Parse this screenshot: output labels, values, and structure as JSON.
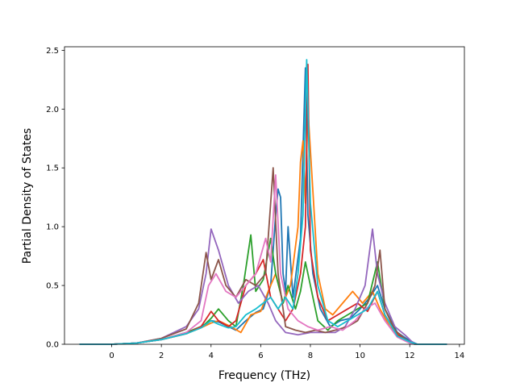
{
  "chart_data": {
    "type": "line",
    "xlabel": "Frequency (THz)",
    "ylabel": "Partial Density of States",
    "xlim": [
      -1.9,
      14.2
    ],
    "ylim": [
      0.0,
      2.53
    ],
    "xticks": [
      0,
      2,
      4,
      6,
      8,
      10,
      12,
      14
    ],
    "yticks": [
      0.0,
      0.5,
      1.0,
      1.5,
      2.0,
      2.5
    ],
    "xtick_labels": [
      "0",
      "2",
      "4",
      "6",
      "8",
      "10",
      "12",
      "14"
    ],
    "ytick_labels": [
      "0.0",
      "0.5",
      "1.0",
      "1.5",
      "2.0",
      "2.5"
    ],
    "grid": false,
    "series": [
      {
        "color": "#1f77b4",
        "points": [
          [
            -1.3,
            0
          ],
          [
            0,
            0
          ],
          [
            1,
            0.01
          ],
          [
            2,
            0.04
          ],
          [
            3,
            0.09
          ],
          [
            3.6,
            0.15
          ],
          [
            4,
            0.2
          ],
          [
            4.3,
            0.19
          ],
          [
            4.7,
            0.15
          ],
          [
            5,
            0.12
          ],
          [
            5.4,
            0.2
          ],
          [
            5.8,
            0.27
          ],
          [
            6.1,
            0.3
          ],
          [
            6.4,
            0.5
          ],
          [
            6.6,
            1.1
          ],
          [
            6.7,
            1.32
          ],
          [
            6.8,
            1.25
          ],
          [
            6.9,
            0.6
          ],
          [
            7.0,
            0.45
          ],
          [
            7.1,
            1.0
          ],
          [
            7.3,
            0.4
          ],
          [
            7.6,
            0.9
          ],
          [
            7.8,
            2.35
          ],
          [
            7.9,
            1.1
          ],
          [
            8.1,
            0.6
          ],
          [
            8.4,
            0.3
          ],
          [
            8.8,
            0.15
          ],
          [
            9.2,
            0.2
          ],
          [
            9.6,
            0.22
          ],
          [
            10,
            0.3
          ],
          [
            10.4,
            0.4
          ],
          [
            10.7,
            0.5
          ],
          [
            11,
            0.3
          ],
          [
            11.5,
            0.1
          ],
          [
            12,
            0.03
          ],
          [
            12.3,
            0
          ],
          [
            13.5,
            0
          ]
        ]
      },
      {
        "color": "#ff7f0e",
        "points": [
          [
            -1.3,
            0
          ],
          [
            0,
            0
          ],
          [
            1,
            0.01
          ],
          [
            2,
            0.04
          ],
          [
            3,
            0.09
          ],
          [
            3.6,
            0.14
          ],
          [
            4,
            0.18
          ],
          [
            4.3,
            0.2
          ],
          [
            4.8,
            0.15
          ],
          [
            5.2,
            0.1
          ],
          [
            5.6,
            0.25
          ],
          [
            6,
            0.28
          ],
          [
            6.3,
            0.45
          ],
          [
            6.6,
            0.6
          ],
          [
            6.9,
            0.35
          ],
          [
            7.2,
            0.5
          ],
          [
            7.5,
            1.0
          ],
          [
            7.6,
            1.55
          ],
          [
            7.7,
            1.73
          ],
          [
            7.8,
            1.2
          ],
          [
            7.9,
            2.0
          ],
          [
            8.1,
            1.3
          ],
          [
            8.3,
            0.6
          ],
          [
            8.6,
            0.3
          ],
          [
            8.9,
            0.25
          ],
          [
            9.3,
            0.35
          ],
          [
            9.7,
            0.45
          ],
          [
            10.1,
            0.35
          ],
          [
            10.5,
            0.45
          ],
          [
            10.8,
            0.3
          ],
          [
            11.2,
            0.15
          ],
          [
            11.7,
            0.05
          ],
          [
            12.1,
            0.01
          ],
          [
            12.3,
            0
          ],
          [
            13.5,
            0
          ]
        ]
      },
      {
        "color": "#2ca02c",
        "points": [
          [
            -1.3,
            0
          ],
          [
            0,
            0
          ],
          [
            1,
            0.01
          ],
          [
            2,
            0.04
          ],
          [
            3,
            0.1
          ],
          [
            3.7,
            0.16
          ],
          [
            4,
            0.22
          ],
          [
            4.3,
            0.3
          ],
          [
            4.7,
            0.2
          ],
          [
            5,
            0.15
          ],
          [
            5.3,
            0.5
          ],
          [
            5.6,
            0.93
          ],
          [
            5.8,
            0.45
          ],
          [
            6.1,
            0.55
          ],
          [
            6.4,
            0.9
          ],
          [
            6.6,
            0.6
          ],
          [
            6.9,
            0.35
          ],
          [
            7.1,
            0.5
          ],
          [
            7.4,
            0.3
          ],
          [
            7.6,
            0.45
          ],
          [
            7.8,
            0.7
          ],
          [
            8,
            0.5
          ],
          [
            8.3,
            0.2
          ],
          [
            8.7,
            0.12
          ],
          [
            9.1,
            0.2
          ],
          [
            9.5,
            0.25
          ],
          [
            9.9,
            0.3
          ],
          [
            10.3,
            0.35
          ],
          [
            10.7,
            0.7
          ],
          [
            11,
            0.3
          ],
          [
            11.5,
            0.08
          ],
          [
            12,
            0.02
          ],
          [
            12.3,
            0
          ],
          [
            13.5,
            0
          ]
        ]
      },
      {
        "color": "#d62728",
        "points": [
          [
            -1.3,
            0
          ],
          [
            0,
            0
          ],
          [
            1,
            0.01
          ],
          [
            2,
            0.04
          ],
          [
            3,
            0.09
          ],
          [
            3.6,
            0.15
          ],
          [
            4,
            0.28
          ],
          [
            4.3,
            0.2
          ],
          [
            4.7,
            0.15
          ],
          [
            5,
            0.2
          ],
          [
            5.4,
            0.5
          ],
          [
            5.8,
            0.6
          ],
          [
            6.1,
            0.72
          ],
          [
            6.4,
            0.4
          ],
          [
            6.7,
            0.3
          ],
          [
            7,
            0.2
          ],
          [
            7.3,
            0.3
          ],
          [
            7.6,
            0.6
          ],
          [
            7.8,
            1.0
          ],
          [
            7.9,
            2.38
          ],
          [
            8,
            0.8
          ],
          [
            8.3,
            0.4
          ],
          [
            8.7,
            0.2
          ],
          [
            9.1,
            0.25
          ],
          [
            9.5,
            0.3
          ],
          [
            9.9,
            0.35
          ],
          [
            10.3,
            0.28
          ],
          [
            10.7,
            0.45
          ],
          [
            11,
            0.25
          ],
          [
            11.5,
            0.08
          ],
          [
            12,
            0.02
          ],
          [
            12.3,
            0
          ],
          [
            13.5,
            0
          ]
        ]
      },
      {
        "color": "#9467bd",
        "points": [
          [
            -1.3,
            0
          ],
          [
            0,
            0
          ],
          [
            1,
            0.01
          ],
          [
            2,
            0.05
          ],
          [
            3,
            0.15
          ],
          [
            3.5,
            0.3
          ],
          [
            3.8,
            0.6
          ],
          [
            4,
            0.98
          ],
          [
            4.3,
            0.8
          ],
          [
            4.7,
            0.5
          ],
          [
            5.1,
            0.35
          ],
          [
            5.5,
            0.45
          ],
          [
            5.9,
            0.5
          ],
          [
            6.3,
            0.35
          ],
          [
            6.6,
            0.2
          ],
          [
            7,
            0.1
          ],
          [
            7.5,
            0.08
          ],
          [
            8,
            0.1
          ],
          [
            8.5,
            0.1
          ],
          [
            9,
            0.1
          ],
          [
            9.4,
            0.15
          ],
          [
            9.8,
            0.3
          ],
          [
            10.2,
            0.5
          ],
          [
            10.5,
            0.98
          ],
          [
            10.7,
            0.6
          ],
          [
            11,
            0.35
          ],
          [
            11.4,
            0.15
          ],
          [
            11.8,
            0.08
          ],
          [
            12.1,
            0.02
          ],
          [
            12.3,
            0
          ],
          [
            13.5,
            0
          ]
        ]
      },
      {
        "color": "#8c564b",
        "points": [
          [
            -1.3,
            0
          ],
          [
            0,
            0
          ],
          [
            1,
            0.01
          ],
          [
            2,
            0.05
          ],
          [
            3,
            0.13
          ],
          [
            3.5,
            0.35
          ],
          [
            3.8,
            0.78
          ],
          [
            4,
            0.55
          ],
          [
            4.3,
            0.72
          ],
          [
            4.6,
            0.5
          ],
          [
            5,
            0.4
          ],
          [
            5.4,
            0.55
          ],
          [
            5.8,
            0.5
          ],
          [
            6.2,
            0.6
          ],
          [
            6.5,
            1.5
          ],
          [
            6.7,
            0.6
          ],
          [
            7,
            0.15
          ],
          [
            7.4,
            0.12
          ],
          [
            7.8,
            0.1
          ],
          [
            8.2,
            0.12
          ],
          [
            8.6,
            0.1
          ],
          [
            9,
            0.12
          ],
          [
            9.5,
            0.15
          ],
          [
            9.9,
            0.2
          ],
          [
            10.3,
            0.35
          ],
          [
            10.6,
            0.5
          ],
          [
            10.8,
            0.8
          ],
          [
            11,
            0.3
          ],
          [
            11.4,
            0.12
          ],
          [
            11.9,
            0.03
          ],
          [
            12.2,
            0
          ],
          [
            13.5,
            0
          ]
        ]
      },
      {
        "color": "#e377c2",
        "points": [
          [
            -1.3,
            0
          ],
          [
            0,
            0
          ],
          [
            1,
            0.01
          ],
          [
            2,
            0.04
          ],
          [
            3,
            0.1
          ],
          [
            3.6,
            0.2
          ],
          [
            3.9,
            0.5
          ],
          [
            4.2,
            0.6
          ],
          [
            4.6,
            0.45
          ],
          [
            5,
            0.4
          ],
          [
            5.4,
            0.5
          ],
          [
            5.8,
            0.6
          ],
          [
            6.2,
            0.9
          ],
          [
            6.4,
            0.7
          ],
          [
            6.6,
            1.44
          ],
          [
            6.8,
            0.6
          ],
          [
            7.1,
            0.3
          ],
          [
            7.5,
            0.2
          ],
          [
            7.9,
            0.15
          ],
          [
            8.3,
            0.12
          ],
          [
            8.8,
            0.15
          ],
          [
            9.3,
            0.12
          ],
          [
            9.8,
            0.2
          ],
          [
            10.2,
            0.3
          ],
          [
            10.6,
            0.35
          ],
          [
            11,
            0.2
          ],
          [
            11.5,
            0.06
          ],
          [
            12,
            0.01
          ],
          [
            12.3,
            0
          ],
          [
            13.5,
            0
          ]
        ]
      },
      {
        "color": "#17becf",
        "points": [
          [
            -1.3,
            0
          ],
          [
            0,
            0
          ],
          [
            1,
            0.01
          ],
          [
            2,
            0.04
          ],
          [
            3,
            0.09
          ],
          [
            3.6,
            0.14
          ],
          [
            4,
            0.2
          ],
          [
            4.3,
            0.17
          ],
          [
            4.7,
            0.14
          ],
          [
            5,
            0.15
          ],
          [
            5.4,
            0.25
          ],
          [
            5.8,
            0.3
          ],
          [
            6.1,
            0.35
          ],
          [
            6.4,
            0.4
          ],
          [
            6.7,
            0.3
          ],
          [
            7,
            0.4
          ],
          [
            7.3,
            0.3
          ],
          [
            7.5,
            0.6
          ],
          [
            7.7,
            1.1
          ],
          [
            7.85,
            2.42
          ],
          [
            8,
            1.2
          ],
          [
            8.3,
            0.5
          ],
          [
            8.7,
            0.2
          ],
          [
            9.1,
            0.15
          ],
          [
            9.5,
            0.2
          ],
          [
            9.9,
            0.25
          ],
          [
            10.3,
            0.3
          ],
          [
            10.7,
            0.45
          ],
          [
            11,
            0.25
          ],
          [
            11.5,
            0.07
          ],
          [
            12,
            0.02
          ],
          [
            12.3,
            0
          ],
          [
            13.5,
            0
          ]
        ]
      }
    ]
  }
}
